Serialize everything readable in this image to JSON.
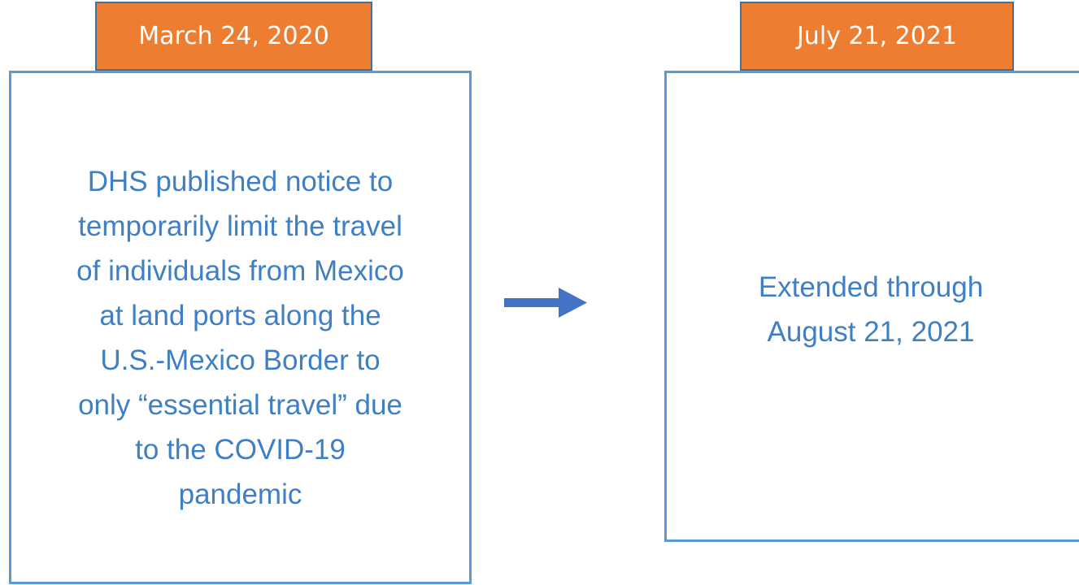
{
  "cards": [
    {
      "date": "March 24, 2020",
      "lines": [
        "DHS published notice to",
        "temporarily limit the travel",
        "of individuals from Mexico",
        "at land ports along the",
        "U.S.-Mexico Border to",
        "only “essential travel” due",
        "to the COVID-19",
        "pandemic"
      ]
    },
    {
      "date": "July 21, 2021",
      "lines": [
        "Extended through",
        "August 21, 2021"
      ]
    }
  ]
}
